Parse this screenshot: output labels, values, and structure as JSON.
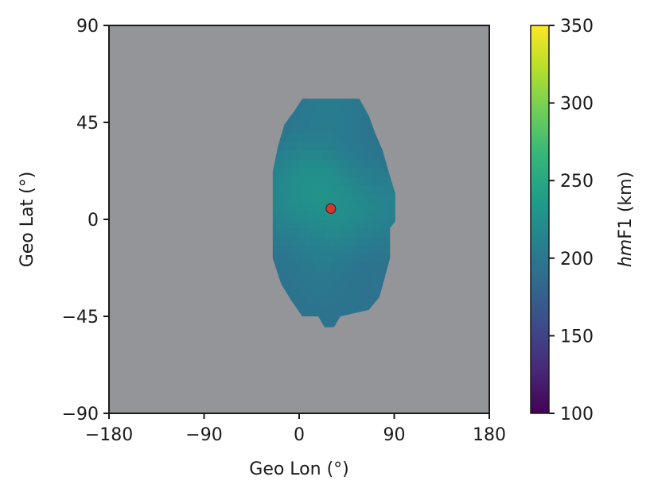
{
  "chart_data": {
    "type": "heatmap",
    "title": "",
    "xlabel": "Geo Lon (°)",
    "ylabel": "Geo Lat (°)",
    "xlim": [
      -180,
      180
    ],
    "ylim": [
      -90,
      90
    ],
    "xticks": [
      -180,
      -90,
      0,
      90,
      180
    ],
    "xtick_labels": [
      "−180",
      "−90",
      "0",
      "90",
      "180"
    ],
    "yticks": [
      -90,
      -45,
      0,
      45,
      90
    ],
    "ytick_labels": [
      "−90",
      "−45",
      "0",
      "45",
      "90"
    ],
    "grid": false,
    "background_color": "#939598",
    "colorbar": {
      "label_italic": "hm",
      "label_rest": "F1 (km)",
      "min": 100,
      "max": 350,
      "ticks": [
        100,
        150,
        200,
        250,
        300,
        350
      ],
      "tick_labels": [
        "100",
        "150",
        "200",
        "250",
        "300",
        "350"
      ],
      "colormap": "viridis"
    },
    "region_outline_lonlat": [
      [
        9,
        56
      ],
      [
        57,
        56
      ],
      [
        66,
        48
      ],
      [
        72,
        40
      ],
      [
        79,
        32
      ],
      [
        86,
        20
      ],
      [
        91,
        12
      ],
      [
        91,
        -1
      ],
      [
        86,
        -4
      ],
      [
        86,
        -18
      ],
      [
        81,
        -27
      ],
      [
        76,
        -36
      ],
      [
        66,
        -42
      ],
      [
        39,
        -45
      ],
      [
        33,
        -50
      ],
      [
        24,
        -50
      ],
      [
        18,
        -45
      ],
      [
        3,
        -45
      ],
      [
        -7,
        -38
      ],
      [
        -17,
        -30
      ],
      [
        -25,
        -18
      ],
      [
        -25,
        22
      ],
      [
        -20,
        34
      ],
      [
        -14,
        44
      ],
      [
        -5,
        50
      ],
      [
        3,
        56
      ]
    ],
    "field_hmF1_km": {
      "base": 195,
      "features": [
        {
          "lon": 12,
          "lat": 11,
          "value": 248
        },
        {
          "lon": 40,
          "lat": 6,
          "value": 240
        },
        {
          "lon": 70,
          "lat": 5,
          "value": 235
        },
        {
          "lon": -12,
          "lat": 8,
          "value": 228
        },
        {
          "lon": 5,
          "lat": -18,
          "value": 215
        },
        {
          "lon": 28,
          "lat": 48,
          "value": 210
        },
        {
          "lon": 68,
          "lat": 22,
          "value": 190
        },
        {
          "lon": -15,
          "lat": -25,
          "value": 188
        },
        {
          "lon": 72,
          "lat": -20,
          "value": 192
        }
      ]
    },
    "marker": {
      "lon": 30,
      "lat": 5,
      "color": "#d9352a"
    }
  }
}
